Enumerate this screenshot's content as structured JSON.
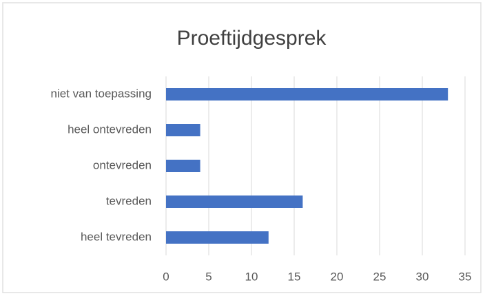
{
  "chart_data": {
    "type": "barh",
    "title": "Proeftijdgesprek",
    "categories": [
      "niet van toepassing",
      "heel ontevreden",
      "ontevreden",
      "tevreden",
      "heel tevreden"
    ],
    "values": [
      33,
      4,
      4,
      16,
      12
    ],
    "color": "#4472c4",
    "xlim": [
      0,
      35
    ],
    "xticks": [
      0,
      5,
      10,
      15,
      20,
      25,
      30,
      35
    ],
    "grid": true
  }
}
